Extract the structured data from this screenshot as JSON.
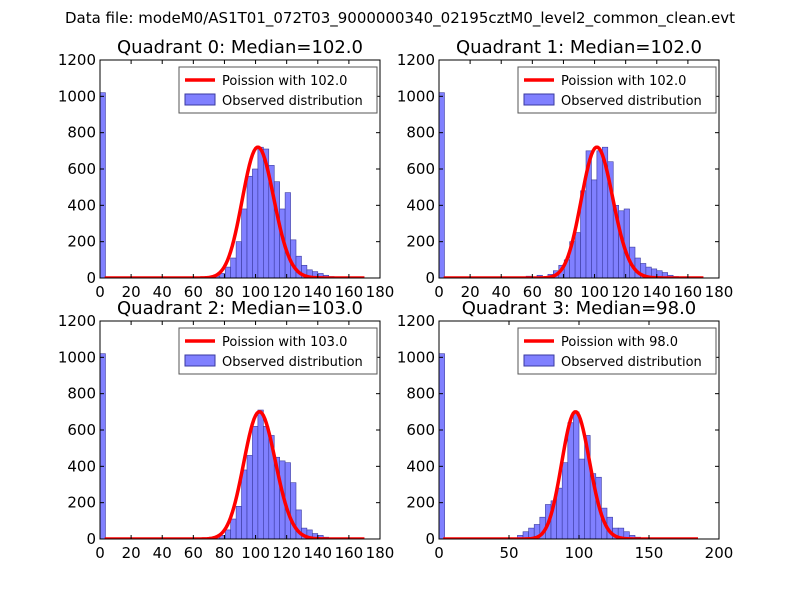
{
  "figure": {
    "suptitle": "Data file: modeM0/AS1T01_072T03_9000000340_02195cztM0_level2_common_clean.evt"
  },
  "colors": {
    "bar_fill": "#8080ff",
    "bar_edge": "#3a3aa0",
    "fit_line": "#ff0000",
    "axes": "#000000",
    "legend_edge": "#555555"
  },
  "chart_data": [
    {
      "type": "bar",
      "title": "Quadrant 0: Median=102.0",
      "legend": {
        "position": "top-right",
        "entries": [
          "Poission with 102.0",
          "Observed distribution"
        ]
      },
      "xlim": [
        0,
        180
      ],
      "ylim": [
        0,
        1200
      ],
      "xticks": [
        0,
        20,
        40,
        60,
        80,
        100,
        120,
        140,
        160,
        180
      ],
      "yticks": [
        0,
        200,
        400,
        600,
        800,
        1000,
        1200
      ],
      "bin_width": 3.5,
      "hist_x": [
        0,
        73.5,
        77,
        80.5,
        84,
        87.5,
        91,
        94.5,
        98,
        101.5,
        105,
        108.5,
        112,
        115.5,
        119,
        122.5,
        126,
        129.5,
        133,
        136.5,
        140,
        143.5,
        147,
        150.5
      ],
      "hist_y": [
        1020,
        10,
        25,
        60,
        110,
        200,
        380,
        560,
        600,
        720,
        710,
        620,
        530,
        380,
        470,
        210,
        120,
        70,
        45,
        35,
        25,
        15,
        8,
        5
      ],
      "poisson_mean": 102.0,
      "fit_peak": 720,
      "fit_xrange": [
        3,
        170
      ]
    },
    {
      "type": "bar",
      "title": "Quadrant 1: Median=102.0",
      "legend": {
        "position": "top-right",
        "entries": [
          "Poission with 102.0",
          "Observed distribution"
        ]
      },
      "xlim": [
        0,
        180
      ],
      "ylim": [
        0,
        1200
      ],
      "xticks": [
        0,
        20,
        40,
        60,
        80,
        100,
        120,
        140,
        160,
        180
      ],
      "yticks": [
        0,
        200,
        400,
        600,
        800,
        1000,
        1200
      ],
      "bin_width": 3.5,
      "hist_x": [
        0,
        56,
        63,
        70,
        73.5,
        77,
        80.5,
        84,
        87.5,
        91,
        94.5,
        98,
        101.5,
        105,
        108.5,
        112,
        115.5,
        119,
        122.5,
        126,
        129.5,
        133,
        136.5,
        140,
        143.5,
        147,
        150.5
      ],
      "hist_y": [
        1020,
        10,
        15,
        20,
        40,
        70,
        100,
        200,
        250,
        480,
        700,
        540,
        700,
        720,
        640,
        400,
        370,
        380,
        170,
        110,
        80,
        60,
        50,
        40,
        30,
        15,
        8
      ],
      "poisson_mean": 102.0,
      "fit_peak": 720,
      "fit_xrange": [
        3,
        170
      ]
    },
    {
      "type": "bar",
      "title": "Quadrant 2: Median=103.0",
      "legend": {
        "position": "top-right",
        "entries": [
          "Poission with 103.0",
          "Observed distribution"
        ]
      },
      "xlim": [
        0,
        180
      ],
      "ylim": [
        0,
        1200
      ],
      "xticks": [
        0,
        20,
        40,
        60,
        80,
        100,
        120,
        140,
        160,
        180
      ],
      "yticks": [
        0,
        200,
        400,
        600,
        800,
        1000,
        1200
      ],
      "bin_width": 3.5,
      "hist_x": [
        0,
        73.5,
        77,
        80.5,
        84,
        87.5,
        91,
        94.5,
        98,
        101.5,
        105,
        108.5,
        112,
        115.5,
        119,
        122.5,
        126,
        129.5,
        133,
        136.5,
        140,
        143.5,
        147
      ],
      "hist_y": [
        1020,
        10,
        20,
        50,
        110,
        180,
        380,
        460,
        620,
        710,
        620,
        570,
        450,
        430,
        420,
        310,
        160,
        60,
        50,
        30,
        20,
        10,
        5
      ],
      "poisson_mean": 103.0,
      "fit_peak": 700,
      "fit_xrange": [
        3,
        170
      ]
    },
    {
      "type": "bar",
      "title": "Quadrant 3: Median=98.0",
      "legend": {
        "position": "top-right",
        "entries": [
          "Poission with 98.0",
          "Observed distribution"
        ]
      },
      "xlim": [
        0,
        200
      ],
      "ylim": [
        0,
        1200
      ],
      "xticks": [
        0,
        50,
        100,
        150,
        200
      ],
      "yticks": [
        0,
        200,
        400,
        600,
        800,
        1000,
        1200
      ],
      "bin_width": 4,
      "hist_x": [
        0,
        56,
        60,
        64,
        68,
        72,
        76,
        80,
        84,
        88,
        92,
        96,
        100,
        104,
        108,
        112,
        116,
        120,
        124,
        128,
        132,
        136,
        140,
        144
      ],
      "hist_y": [
        1020,
        20,
        40,
        60,
        80,
        120,
        190,
        210,
        280,
        420,
        640,
        700,
        440,
        570,
        360,
        340,
        170,
        120,
        60,
        60,
        40,
        20,
        10,
        5
      ],
      "poisson_mean": 98.0,
      "fit_peak": 700,
      "fit_xrange": [
        3,
        185
      ]
    }
  ]
}
